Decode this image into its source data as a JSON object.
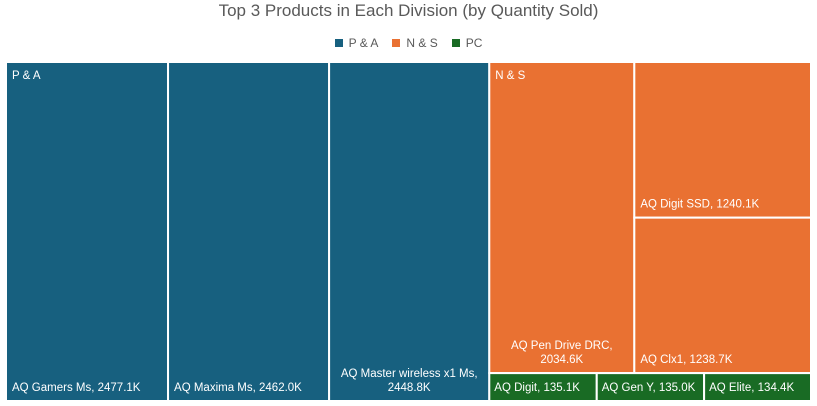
{
  "chart_data": {
    "type": "treemap",
    "title": "Top 3 Products in Each Division (by Quantity Sold)",
    "legend_position": "top",
    "series": [
      {
        "name": "P & A",
        "color": "#17607f",
        "items": [
          {
            "label": "AQ Gamers Ms, 2477.1K",
            "value": 2477.1
          },
          {
            "label": "AQ Maxima Ms, 2462.0K",
            "value": 2462.0
          },
          {
            "label": "AQ Master wireless x1 Ms, 2448.8K",
            "value": 2448.8
          }
        ]
      },
      {
        "name": "N & S",
        "color": "#e97132",
        "items": [
          {
            "label": "AQ Pen Drive DRC, 2034.6K",
            "value": 2034.6
          },
          {
            "label": "AQ Digit SSD, 1240.1K",
            "value": 1240.1
          },
          {
            "label": "AQ Clx1, 1238.7K",
            "value": 1238.7
          }
        ]
      },
      {
        "name": "PC",
        "color": "#196b24",
        "items": [
          {
            "label": "AQ Digit, 135.1K",
            "value": 135.1
          },
          {
            "label": "AQ Gen Y, 135.0K",
            "value": 135.0
          },
          {
            "label": "AQ Elite, 134.4K",
            "value": 134.4
          }
        ]
      }
    ]
  }
}
